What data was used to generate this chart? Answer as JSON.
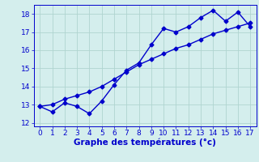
{
  "x": [
    0,
    1,
    2,
    3,
    4,
    5,
    6,
    7,
    8,
    9,
    10,
    11,
    12,
    13,
    14,
    15,
    16,
    17
  ],
  "series1": [
    12.9,
    12.6,
    13.1,
    12.9,
    12.5,
    13.2,
    14.1,
    14.9,
    15.3,
    16.3,
    17.2,
    17.0,
    17.3,
    17.8,
    18.2,
    17.6,
    18.1,
    17.3
  ],
  "series2": [
    12.9,
    13.0,
    13.3,
    13.5,
    13.7,
    14.0,
    14.4,
    14.8,
    15.2,
    15.5,
    15.8,
    16.1,
    16.3,
    16.6,
    16.9,
    17.1,
    17.3,
    17.5
  ],
  "xlim": [
    -0.5,
    17.5
  ],
  "ylim": [
    11.8,
    18.5
  ],
  "yticks": [
    12,
    13,
    14,
    15,
    16,
    17,
    18
  ],
  "xticks": [
    0,
    1,
    2,
    3,
    4,
    5,
    6,
    7,
    8,
    9,
    10,
    11,
    12,
    13,
    14,
    15,
    16,
    17
  ],
  "xlabel": "Graphe des températures (°c)",
  "line_color": "#0000cc",
  "bg_color": "#d4eeed",
  "grid_color": "#b0d4d0",
  "marker": "D",
  "marker_size": 2.5,
  "line_width": 1.0,
  "xlabel_fontsize": 7.5,
  "tick_fontsize": 6.5
}
